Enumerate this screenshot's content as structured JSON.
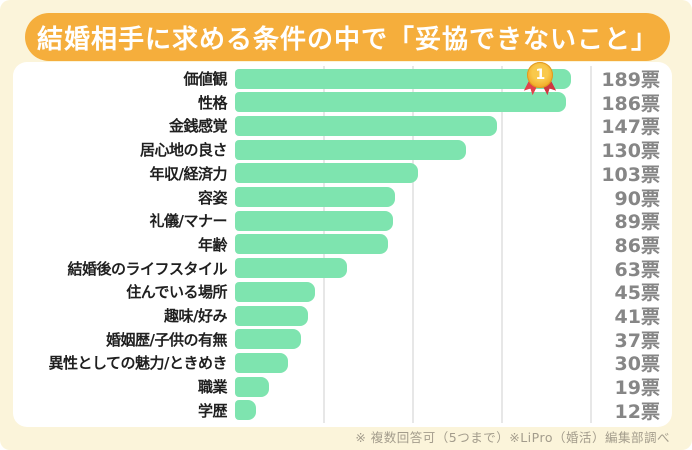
{
  "title": "結婚相手に求める条件の中で「妥協できないこと」",
  "footnote": "※ 複数回答可（5つまで）※LiPro（婚活）編集部調べ",
  "medal": {
    "rank": "1"
  },
  "colors": {
    "background": "#FBF4DA",
    "banner": "#F5AE3C",
    "panel": "#FFFFFF",
    "bar": "#7EE4AF",
    "label_text": "#1F1F1F",
    "value_text": "#868686",
    "gridline": "#E7E7E7",
    "medal_gold": "#F1A825",
    "medal_ribbon": "#E2414B"
  },
  "chart_data": {
    "type": "bar",
    "orientation": "horizontal",
    "title": "結婚相手に求める条件の中で「妥協できないこと」",
    "categories": [
      "価値観",
      "性格",
      "金銭感覚",
      "居心地の良さ",
      "年収/経済力",
      "容姿",
      "礼儀/マナー",
      "年齢",
      "結婚後のライフスタイル",
      "住んでいる場所",
      "趣味/好み",
      "婚姻歴/子供の有無",
      "異性としての魅力/ときめき",
      "職業",
      "学歴"
    ],
    "values": [
      189,
      186,
      147,
      130,
      103,
      90,
      89,
      86,
      63,
      45,
      41,
      37,
      30,
      19,
      12
    ],
    "unit": "票",
    "value_labels": [
      "189票",
      "186票",
      "147票",
      "130票",
      "103票",
      "90票",
      "89票",
      "86票",
      "63票",
      "45票",
      "41票",
      "37票",
      "30票",
      "19票",
      "12票"
    ],
    "xlim": [
      0,
      200
    ],
    "gridline_step": 50,
    "grid": true,
    "legend": false,
    "highlight": {
      "category": "価値観",
      "badge_rank": "1"
    }
  }
}
